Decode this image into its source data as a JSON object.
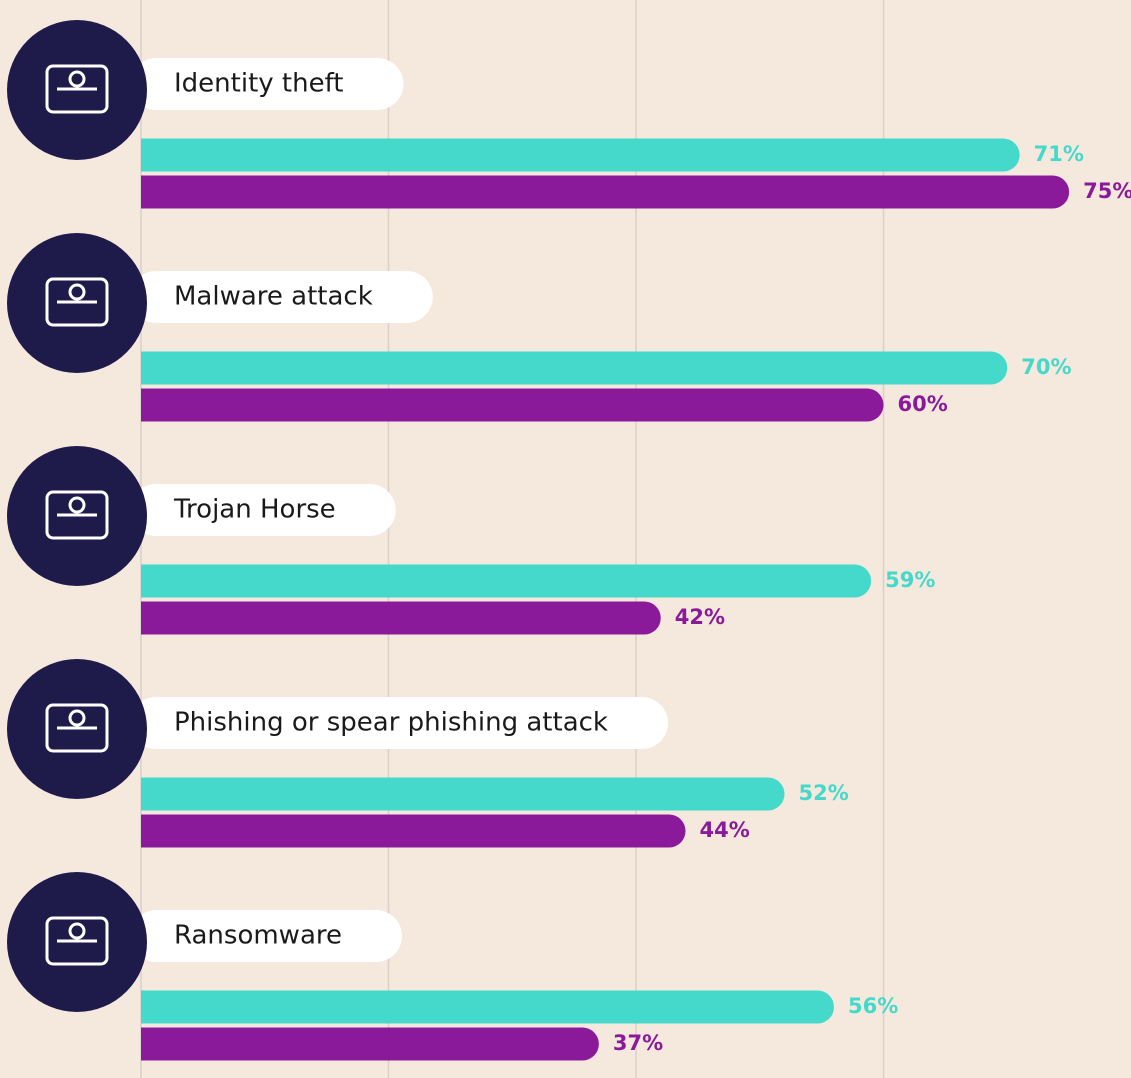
{
  "chart_data": {
    "type": "bar",
    "orientation": "horizontal",
    "categories": [
      "Identity theft",
      "Malware attack",
      "Trojan Horse",
      "Phishing or spear phishing attack",
      "Ransomware"
    ],
    "series": [
      {
        "color": "#45d9cb",
        "values": [
          71,
          70,
          59,
          52,
          56
        ],
        "value_labels": [
          "71%",
          "70%",
          "59%",
          "52%",
          "56%"
        ]
      },
      {
        "color": "#8b1a9a",
        "values": [
          75,
          60,
          42,
          44,
          37
        ],
        "value_labels": [
          "75%",
          "60%",
          "42%",
          "44%",
          "37%"
        ]
      }
    ],
    "xlim": [
      0,
      80
    ],
    "xticks": [
      0,
      20,
      40,
      60
    ],
    "grid": true
  }
}
